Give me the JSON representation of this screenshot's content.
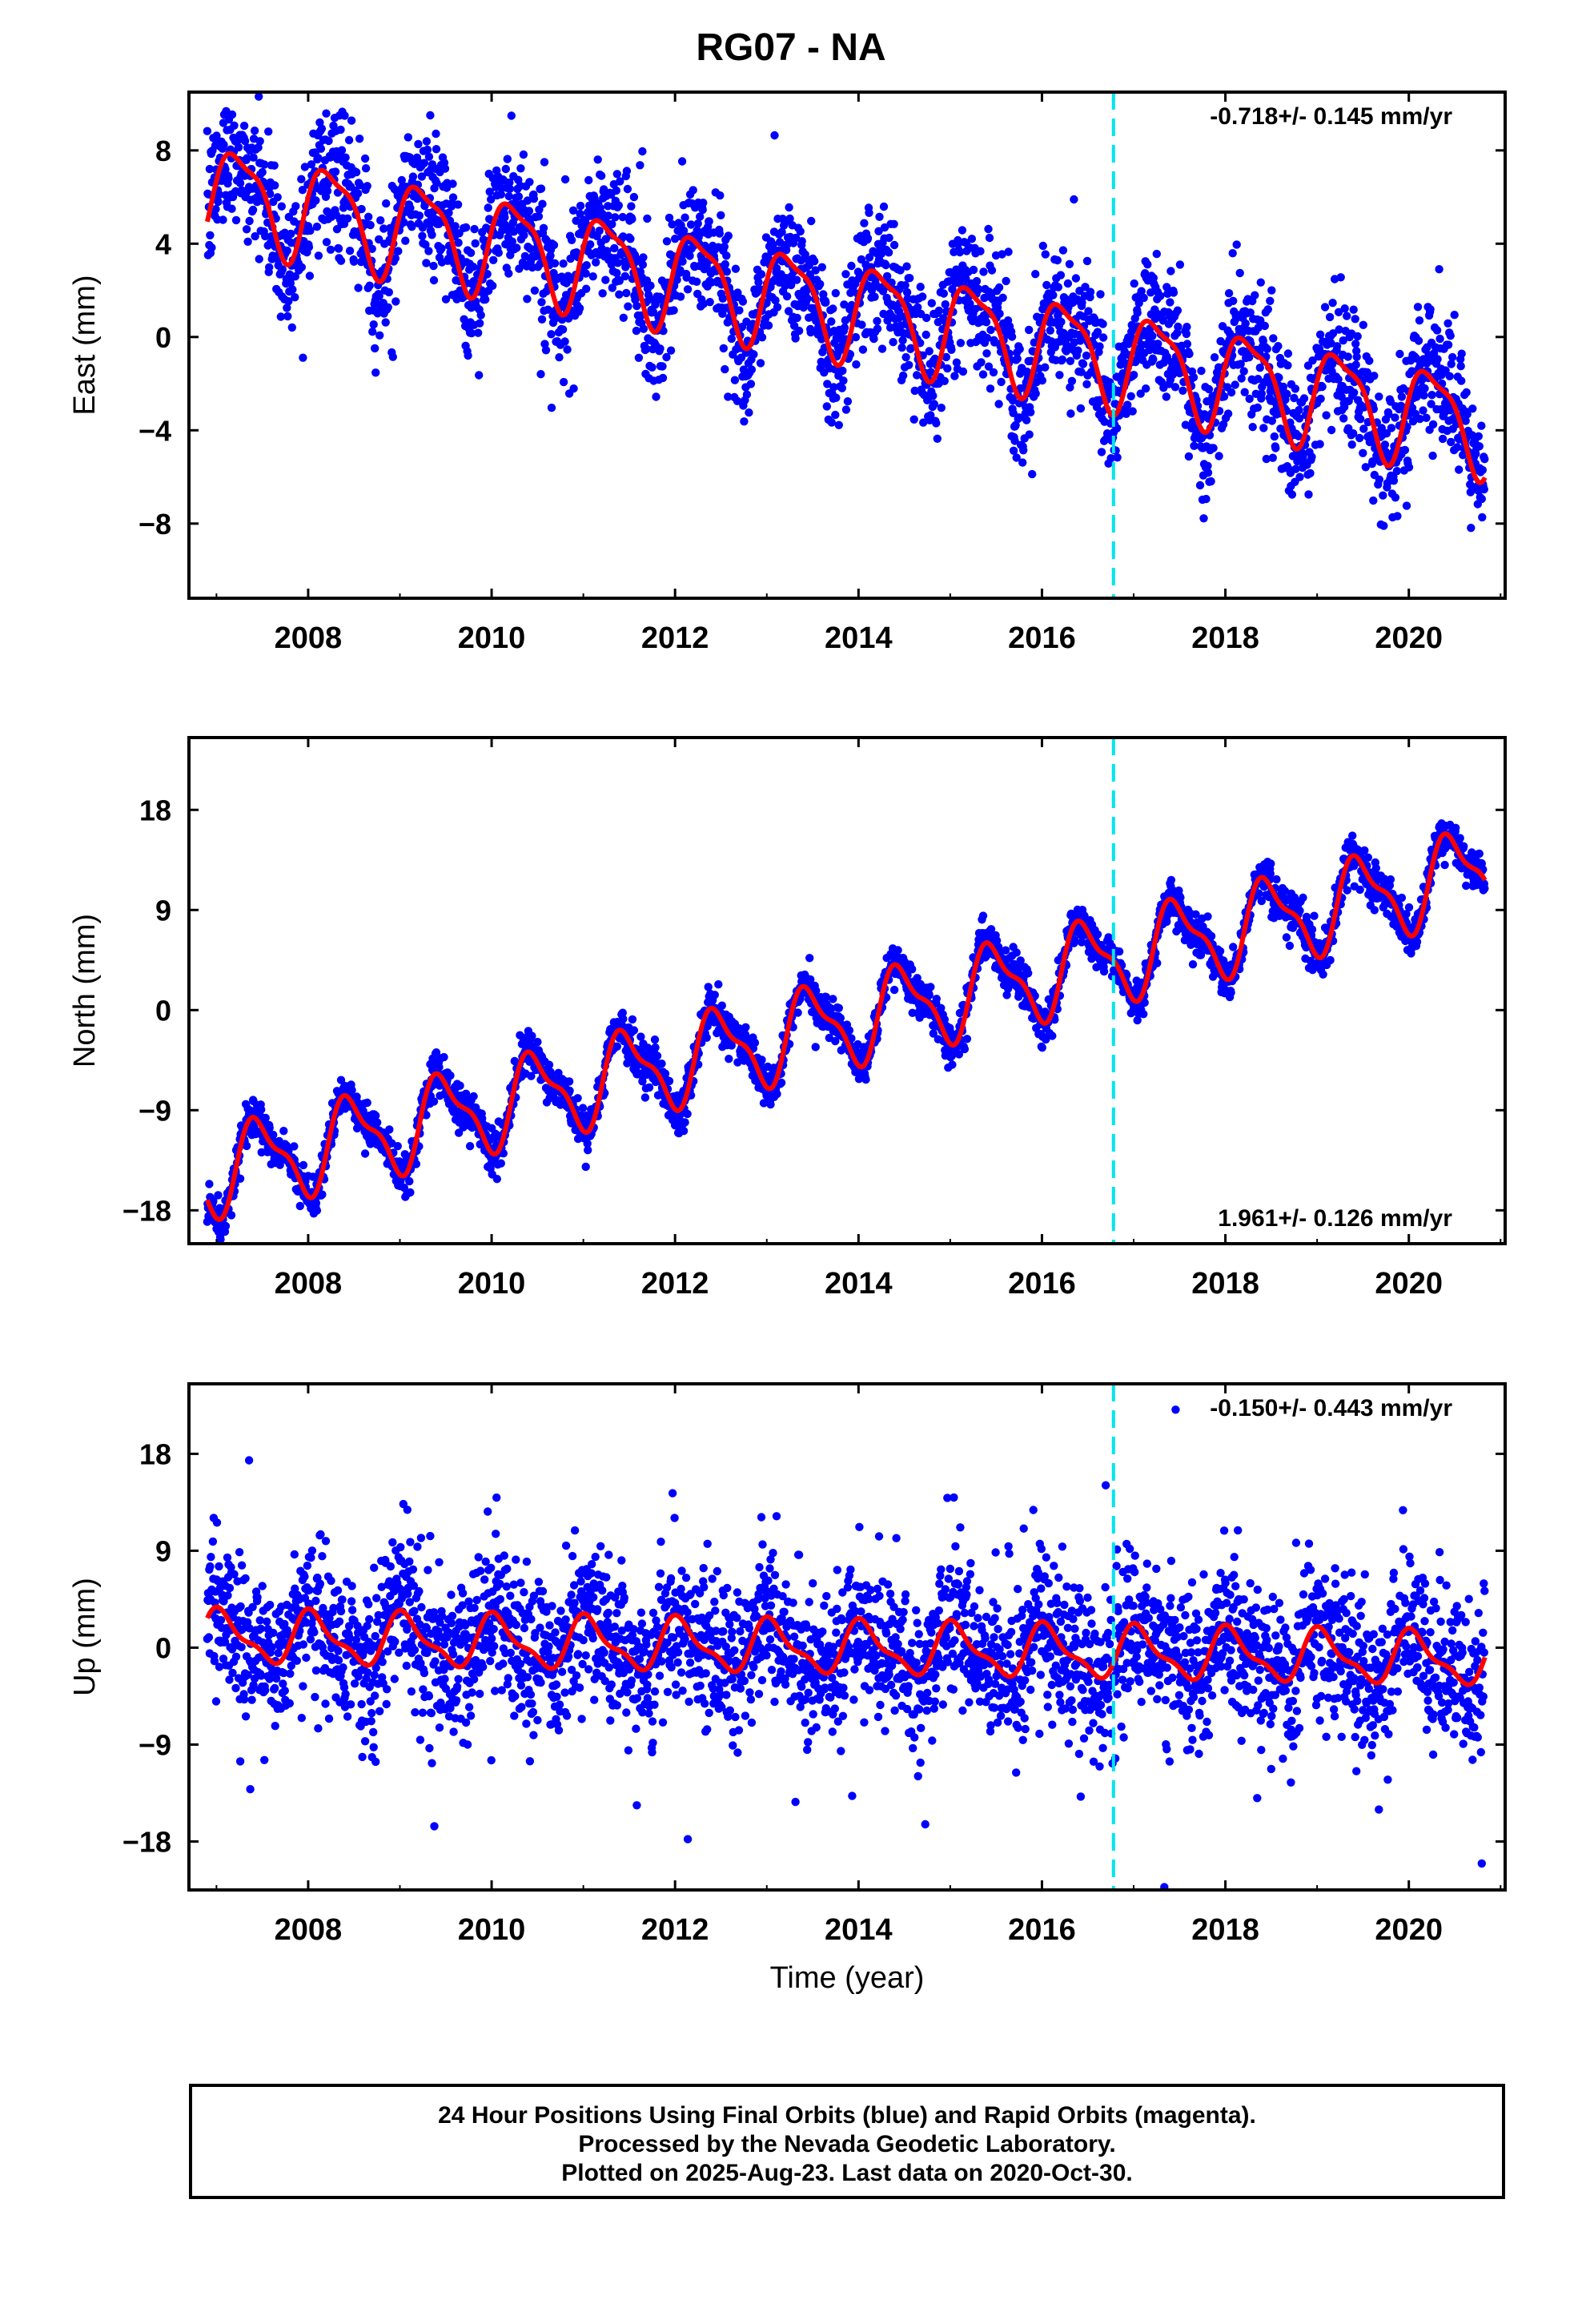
{
  "title": "RG07 - NA",
  "xlabel": "Time (year)",
  "footer": [
    "24 Hour Positions Using Final Orbits (blue) and Rapid Orbits (magenta).",
    "Processed by the Nevada Geodetic Laboratory.",
    "Plotted on 2025-Aug-23. Last data on 2020-Oct-30."
  ],
  "colors": {
    "points": "#0000ff",
    "model": "#ff0000",
    "event_line": "#00e5ee"
  },
  "chart_data": [
    {
      "type": "scatter",
      "ylabel": "East (mm)",
      "rate": "-0.718+/- 0.145 mm/yr",
      "rate_position": "top-right",
      "xlim": [
        2006.7,
        2021.05
      ],
      "ylim": [
        -11.2,
        10.5
      ],
      "xticks": [
        2008,
        2010,
        2012,
        2014,
        2016,
        2018,
        2020
      ],
      "yticks": [
        8,
        4,
        0,
        -4,
        -8
      ],
      "ytick_labels": [
        "8",
        "4",
        "0",
        "−4",
        "−8"
      ],
      "event_line_x": 2016.78,
      "model": {
        "offset": 6.2,
        "slope": -0.718,
        "annual_amp": 2.0,
        "annual_phase": 0.0,
        "semiannual_amp": 0.6,
        "semiannual_phase": 1.0
      },
      "data_span": [
        2006.9,
        2020.83
      ],
      "scatter_sd": 1.4
    },
    {
      "type": "scatter",
      "ylabel": "North (mm)",
      "rate": "1.961+/- 0.126 mm/yr",
      "rate_position": "bottom-right",
      "xlim": [
        2006.7,
        2021.05
      ],
      "ylim": [
        -21,
        24.5
      ],
      "xticks": [
        2008,
        2010,
        2012,
        2014,
        2016,
        2018,
        2020
      ],
      "yticks": [
        18,
        9,
        0,
        -9,
        -18
      ],
      "ytick_labels": [
        "18",
        "9",
        "0",
        "−9",
        "−18"
      ],
      "event_line_x": 2016.78,
      "model": {
        "offset": -14.5,
        "slope": 1.961,
        "annual_amp": 3.6,
        "annual_phase": -1.4,
        "semiannual_amp": 1.3,
        "semiannual_phase": -2.6
      },
      "data_span": [
        2006.9,
        2020.83
      ],
      "scatter_sd": 0.9
    },
    {
      "type": "scatter",
      "ylabel": "Up (mm)",
      "rate": "-0.150+/- 0.443 mm/yr",
      "rate_position": "top-right",
      "xlim": [
        2006.7,
        2021.05
      ],
      "ylim": [
        -22.5,
        24.5
      ],
      "xticks": [
        2008,
        2010,
        2012,
        2014,
        2016,
        2018,
        2020
      ],
      "yticks": [
        18,
        9,
        0,
        -9,
        -18
      ],
      "ytick_labels": [
        "18",
        "9",
        "0",
        "−9",
        "−18"
      ],
      "event_line_x": 2016.78,
      "model": {
        "offset": 1.0,
        "slope": -0.15,
        "annual_amp": 2.2,
        "annual_phase": 1.2,
        "semiannual_amp": 0.8,
        "semiannual_phase": 2.0
      },
      "data_span": [
        2006.9,
        2020.83
      ],
      "scatter_sd": 3.6
    }
  ]
}
